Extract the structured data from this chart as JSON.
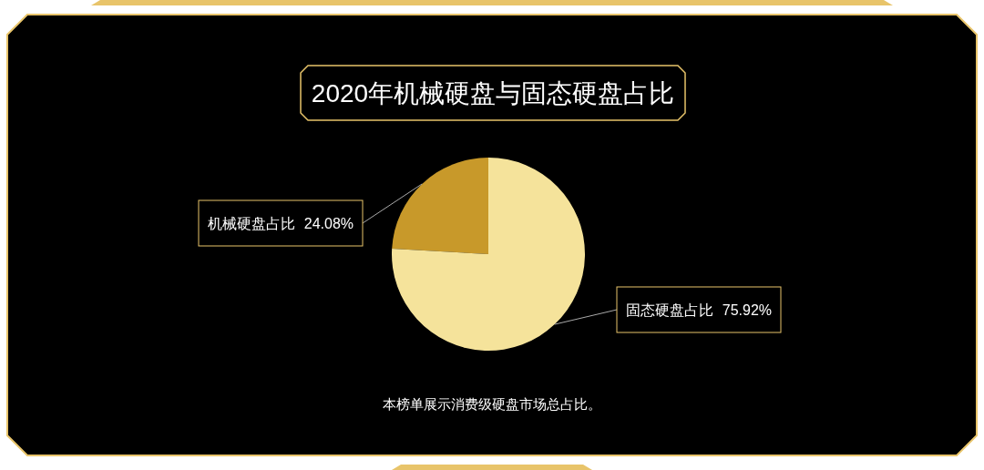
{
  "chart_data": {
    "type": "pie",
    "title": "2020年机械硬盘与固态硬盘占比",
    "categories": [
      "机械硬盘占比",
      "固态硬盘占比"
    ],
    "values": [
      24.08,
      75.92
    ],
    "colors": [
      "#c8992a",
      "#f5e39b"
    ],
    "value_labels": [
      "24.08%",
      "75.92%"
    ],
    "annotations": [
      "本榜单展示消费级硬盘市场总占比。"
    ]
  }
}
